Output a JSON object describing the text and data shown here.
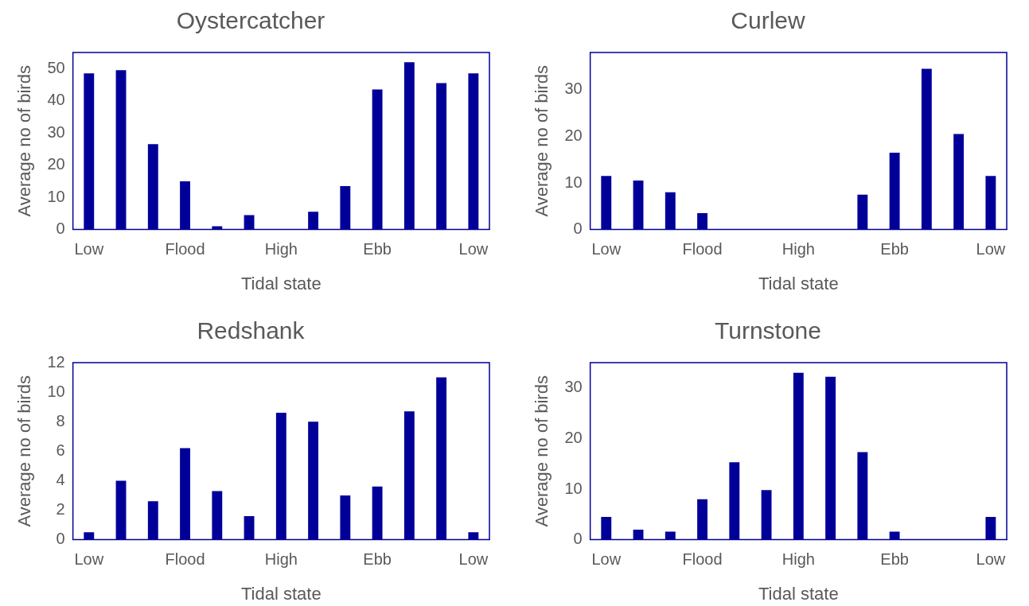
{
  "chart_data": [
    {
      "type": "bar",
      "title": "Oystercatcher",
      "xlabel": "Tidal state",
      "ylabel": "Average no of birds",
      "categories": [
        "Low",
        null,
        null,
        "Flood",
        null,
        null,
        "High",
        null,
        null,
        "Ebb",
        null,
        null,
        "Low"
      ],
      "values": [
        48.5,
        49.5,
        26.5,
        15,
        1,
        4.5,
        0,
        5.5,
        13.5,
        43.5,
        52,
        45.5,
        48.5
      ],
      "color": "#000099",
      "ylim": [
        0,
        55
      ],
      "yticks": [
        0,
        10,
        20,
        30,
        40,
        50
      ],
      "grid": false,
      "legend": false
    },
    {
      "type": "bar",
      "title": "Curlew",
      "xlabel": "Tidal state",
      "ylabel": "Average no of birds",
      "categories": [
        "Low",
        null,
        null,
        "Flood",
        null,
        null,
        "High",
        null,
        null,
        "Ebb",
        null,
        null,
        "Low"
      ],
      "values": [
        11.5,
        10.5,
        8,
        3.5,
        0,
        0,
        0,
        0,
        7.5,
        16.5,
        34.5,
        20.5,
        11.5
      ],
      "color": "#000099",
      "ylim": [
        0,
        38
      ],
      "yticks": [
        0,
        10,
        20,
        30
      ],
      "grid": false,
      "legend": false
    },
    {
      "type": "bar",
      "title": "Redshank",
      "xlabel": "Tidal state",
      "ylabel": "Average no of birds",
      "categories": [
        "Low",
        null,
        null,
        "Flood",
        null,
        null,
        "High",
        null,
        null,
        "Ebb",
        null,
        null,
        "Low"
      ],
      "values": [
        0.5,
        4,
        2.6,
        6.2,
        3.3,
        1.6,
        8.6,
        8,
        3,
        3.6,
        8.7,
        11,
        0.5
      ],
      "color": "#000099",
      "ylim": [
        0,
        12
      ],
      "yticks": [
        0,
        2,
        4,
        6,
        8,
        10,
        12
      ],
      "grid": false,
      "legend": false
    },
    {
      "type": "bar",
      "title": "Turnstone",
      "xlabel": "Tidal state",
      "ylabel": "Average no of birds",
      "categories": [
        "Low",
        null,
        null,
        "Flood",
        null,
        null,
        "High",
        null,
        null,
        "Ebb",
        null,
        null,
        "Low"
      ],
      "values": [
        4.5,
        2,
        1.6,
        8,
        15.3,
        9.8,
        33,
        32.2,
        17.3,
        1.6,
        0,
        0,
        4.5
      ],
      "color": "#000099",
      "ylim": [
        0,
        35
      ],
      "yticks": [
        0,
        10,
        20,
        30
      ],
      "grid": false,
      "legend": false
    }
  ]
}
